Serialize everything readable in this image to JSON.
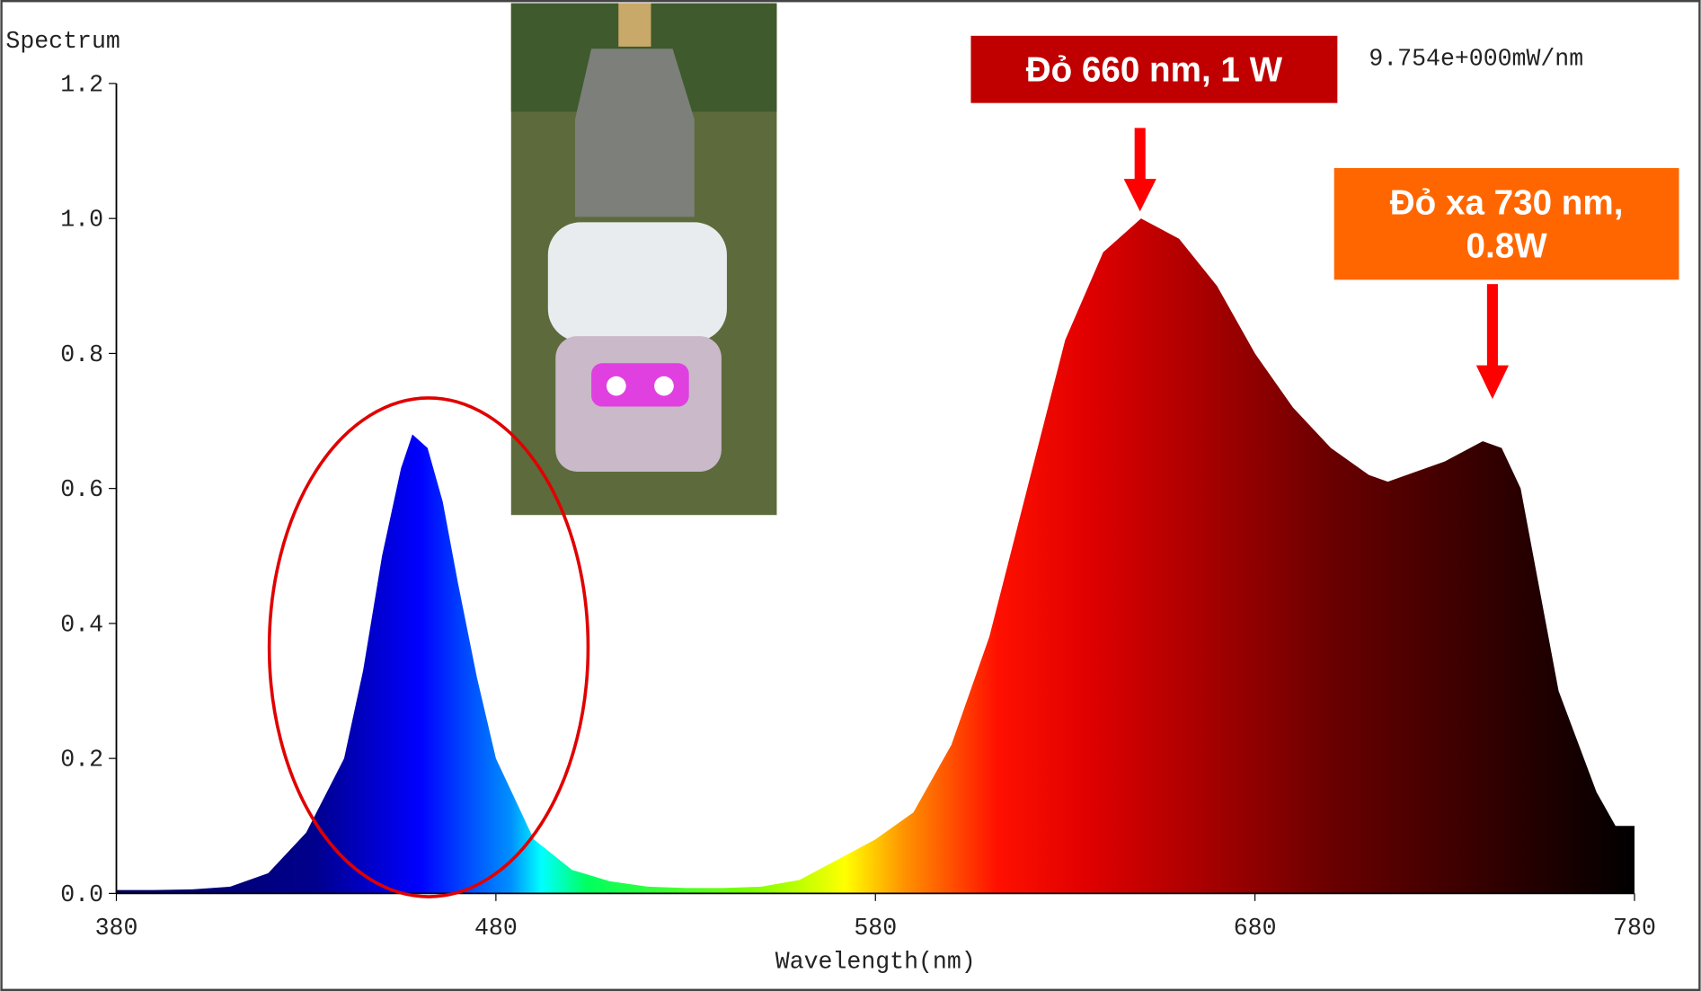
{
  "chart_data": {
    "type": "area",
    "title": "Spectrum",
    "readout": "9.754e+000mW/nm",
    "xlabel": "Wavelength(nm)",
    "x": [
      380,
      390,
      400,
      410,
      420,
      430,
      440,
      445,
      450,
      455,
      458,
      462,
      466,
      470,
      475,
      480,
      490,
      500,
      510,
      520,
      530,
      540,
      550,
      560,
      570,
      580,
      590,
      600,
      610,
      620,
      630,
      640,
      650,
      660,
      670,
      680,
      690,
      700,
      710,
      715,
      720,
      730,
      740,
      745,
      750,
      755,
      760,
      770,
      775,
      780
    ],
    "values": [
      0.005,
      0.005,
      0.006,
      0.01,
      0.03,
      0.09,
      0.2,
      0.33,
      0.5,
      0.63,
      0.68,
      0.66,
      0.58,
      0.46,
      0.32,
      0.2,
      0.08,
      0.035,
      0.018,
      0.01,
      0.008,
      0.008,
      0.01,
      0.02,
      0.05,
      0.08,
      0.12,
      0.22,
      0.38,
      0.6,
      0.82,
      0.95,
      1.0,
      0.97,
      0.9,
      0.8,
      0.72,
      0.66,
      0.62,
      0.61,
      0.62,
      0.64,
      0.67,
      0.66,
      0.6,
      0.45,
      0.3,
      0.15,
      0.1,
      0.1
    ],
    "xlim": [
      380,
      780
    ],
    "xticks": [
      380,
      480,
      580,
      680,
      780
    ],
    "ylim": [
      0,
      1.2
    ],
    "yticks": [
      {
        "value": 0,
        "label": "0.0"
      },
      0.2,
      0.4,
      0.6,
      0.8,
      {
        "value": 1,
        "label": "1.0"
      },
      1.2
    ],
    "annotations": [
      {
        "lines": [
          "Đỏ 660 nm, 1 W"
        ],
        "color": "#c00000"
      },
      {
        "lines": [
          "Đỏ xa 730 nm,",
          "0.8W"
        ],
        "color": "#ff6600"
      }
    ]
  }
}
